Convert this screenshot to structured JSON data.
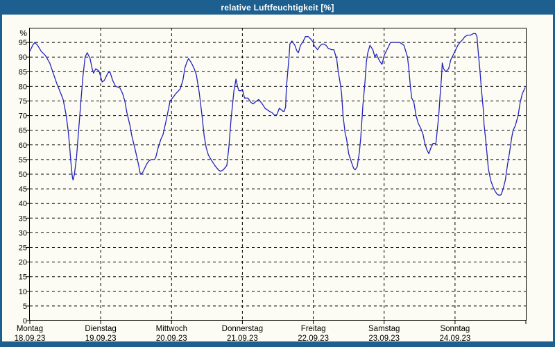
{
  "window": {
    "title": "relative Luftfeuchtigkeit [%]"
  },
  "colors": {
    "titlebar_bg": "#1d5f8f",
    "frame": "#1d5f8f",
    "title_text": "#ffffff",
    "content_bg": "#fcfcf4",
    "grid": "#000000",
    "text": "#000000",
    "line": "#2121bd"
  },
  "chart_data": {
    "type": "line",
    "title": "relative Luftfeuchtigkeit [%]",
    "ylabel": "%",
    "xlabel": "",
    "ylim": [
      0,
      100
    ],
    "yticks": [
      95,
      90,
      85,
      80,
      75,
      70,
      65,
      60,
      55,
      50,
      45,
      40,
      35,
      30,
      25,
      20,
      15,
      10,
      5,
      0
    ],
    "grid": "dashed",
    "legend_position": "none",
    "x_axis": {
      "days": [
        {
          "name": "Montag",
          "date": "18.09.23"
        },
        {
          "name": "Dienstag",
          "date": "19.09.23"
        },
        {
          "name": "Mittwoch",
          "date": "20.09.23"
        },
        {
          "name": "Donnerstag",
          "date": "21.09.23"
        },
        {
          "name": "Freitag",
          "date": "22.09.23"
        },
        {
          "name": "Samstag",
          "date": "23.09.23"
        },
        {
          "name": "Sonntag",
          "date": "24.09.23"
        }
      ]
    },
    "series": [
      {
        "name": "relative Luftfeuchtigkeit",
        "unit": "%",
        "points": [
          [
            0.0,
            92
          ],
          [
            0.04,
            94
          ],
          [
            0.07,
            95
          ],
          [
            0.11,
            94
          ],
          [
            0.16,
            92
          ],
          [
            0.22,
            90.5
          ],
          [
            0.28,
            88
          ],
          [
            0.33,
            84.5
          ],
          [
            0.38,
            81
          ],
          [
            0.43,
            78
          ],
          [
            0.47,
            75.5
          ],
          [
            0.51,
            70.5
          ],
          [
            0.54,
            65
          ],
          [
            0.56,
            60
          ],
          [
            0.58,
            54
          ],
          [
            0.6,
            49
          ],
          [
            0.61,
            48
          ],
          [
            0.63,
            50
          ],
          [
            0.66,
            56
          ],
          [
            0.69,
            65.5
          ],
          [
            0.72,
            74.5
          ],
          [
            0.75,
            83.5
          ],
          [
            0.78,
            90
          ],
          [
            0.81,
            91.5
          ],
          [
            0.85,
            89.5
          ],
          [
            0.88,
            86
          ],
          [
            0.9,
            84.5
          ],
          [
            0.93,
            86
          ],
          [
            0.96,
            85.5
          ],
          [
            0.98,
            85
          ],
          [
            1.02,
            81.5
          ],
          [
            1.05,
            82
          ],
          [
            1.1,
            84.5
          ],
          [
            1.13,
            85
          ],
          [
            1.17,
            82
          ],
          [
            1.21,
            80
          ],
          [
            1.27,
            79.5
          ],
          [
            1.31,
            77.5
          ],
          [
            1.34,
            75
          ],
          [
            1.37,
            71
          ],
          [
            1.41,
            67
          ],
          [
            1.44,
            63
          ],
          [
            1.47,
            60
          ],
          [
            1.51,
            56
          ],
          [
            1.54,
            52.5
          ],
          [
            1.56,
            50
          ],
          [
            1.59,
            50.5
          ],
          [
            1.62,
            52
          ],
          [
            1.65,
            53.5
          ],
          [
            1.68,
            54.5
          ],
          [
            1.71,
            55
          ],
          [
            1.76,
            55
          ],
          [
            1.78,
            56
          ],
          [
            1.81,
            59
          ],
          [
            1.85,
            62
          ],
          [
            1.88,
            63.5
          ],
          [
            1.93,
            69
          ],
          [
            1.98,
            75
          ],
          [
            2.03,
            76.5
          ],
          [
            2.06,
            77.5
          ],
          [
            2.12,
            79
          ],
          [
            2.16,
            82
          ],
          [
            2.19,
            86.5
          ],
          [
            2.22,
            88.5
          ],
          [
            2.24,
            89.5
          ],
          [
            2.28,
            88
          ],
          [
            2.32,
            86
          ],
          [
            2.35,
            84
          ],
          [
            2.39,
            78
          ],
          [
            2.43,
            70
          ],
          [
            2.46,
            63
          ],
          [
            2.49,
            59
          ],
          [
            2.52,
            56.5
          ],
          [
            2.57,
            54.5
          ],
          [
            2.61,
            53
          ],
          [
            2.66,
            51.5
          ],
          [
            2.69,
            51
          ],
          [
            2.73,
            51.5
          ],
          [
            2.78,
            53
          ],
          [
            2.81,
            59.5
          ],
          [
            2.84,
            69
          ],
          [
            2.86,
            73.5
          ],
          [
            2.88,
            78.5
          ],
          [
            2.91,
            82.5
          ],
          [
            2.93,
            80
          ],
          [
            2.95,
            78.5
          ],
          [
            2.98,
            78.5
          ],
          [
            3.0,
            79
          ],
          [
            3.03,
            76
          ],
          [
            3.05,
            76
          ],
          [
            3.08,
            76
          ],
          [
            3.12,
            74.5
          ],
          [
            3.15,
            74
          ],
          [
            3.2,
            75
          ],
          [
            3.23,
            75.5
          ],
          [
            3.28,
            74
          ],
          [
            3.32,
            72.5
          ],
          [
            3.35,
            72
          ],
          [
            3.38,
            71.5
          ],
          [
            3.42,
            71
          ],
          [
            3.46,
            70
          ],
          [
            3.49,
            70.5
          ],
          [
            3.52,
            72.5
          ],
          [
            3.55,
            72
          ],
          [
            3.57,
            71.5
          ],
          [
            3.59,
            71.5
          ],
          [
            3.61,
            73
          ],
          [
            3.62,
            79.5
          ],
          [
            3.64,
            85
          ],
          [
            3.66,
            90.5
          ],
          [
            3.67,
            94.5
          ],
          [
            3.7,
            95.5
          ],
          [
            3.74,
            94
          ],
          [
            3.77,
            92
          ],
          [
            3.79,
            91.5
          ],
          [
            3.82,
            94
          ],
          [
            3.86,
            95.5
          ],
          [
            3.89,
            97
          ],
          [
            3.93,
            97
          ],
          [
            3.97,
            96
          ],
          [
            4.0,
            95
          ],
          [
            4.01,
            94
          ],
          [
            4.06,
            92.5
          ],
          [
            4.1,
            94
          ],
          [
            4.14,
            94.5
          ],
          [
            4.18,
            94
          ],
          [
            4.21,
            93
          ],
          [
            4.26,
            92.5
          ],
          [
            4.29,
            92.5
          ],
          [
            4.31,
            91
          ],
          [
            4.33,
            89.5
          ],
          [
            4.35,
            85.5
          ],
          [
            4.38,
            81
          ],
          [
            4.4,
            77.5
          ],
          [
            4.42,
            70
          ],
          [
            4.45,
            64
          ],
          [
            4.47,
            62
          ],
          [
            4.5,
            57
          ],
          [
            4.54,
            54
          ],
          [
            4.57,
            52
          ],
          [
            4.59,
            51.5
          ],
          [
            4.62,
            52.5
          ],
          [
            4.65,
            57.5
          ],
          [
            4.67,
            62.5
          ],
          [
            4.7,
            73.5
          ],
          [
            4.73,
            81.5
          ],
          [
            4.75,
            88.5
          ],
          [
            4.77,
            91.5
          ],
          [
            4.8,
            94
          ],
          [
            4.84,
            92.5
          ],
          [
            4.87,
            90
          ],
          [
            4.89,
            91
          ],
          [
            4.92,
            89.5
          ],
          [
            4.94,
            88.5
          ],
          [
            4.97,
            87.5
          ],
          [
            5.0,
            90.5
          ],
          [
            5.04,
            92.5
          ],
          [
            5.09,
            95
          ],
          [
            5.13,
            95
          ],
          [
            5.18,
            95
          ],
          [
            5.22,
            95
          ],
          [
            5.25,
            94.5
          ],
          [
            5.28,
            94
          ],
          [
            5.33,
            90
          ],
          [
            5.35,
            85.5
          ],
          [
            5.37,
            80
          ],
          [
            5.39,
            76
          ],
          [
            5.42,
            74.5
          ],
          [
            5.45,
            70
          ],
          [
            5.48,
            67.5
          ],
          [
            5.52,
            65.5
          ],
          [
            5.55,
            63.5
          ],
          [
            5.57,
            61
          ],
          [
            5.6,
            58.5
          ],
          [
            5.63,
            57
          ],
          [
            5.66,
            59
          ],
          [
            5.69,
            60.5
          ],
          [
            5.73,
            60.5
          ],
          [
            5.75,
            65
          ],
          [
            5.77,
            70
          ],
          [
            5.79,
            77
          ],
          [
            5.81,
            83
          ],
          [
            5.82,
            88
          ],
          [
            5.84,
            86
          ],
          [
            5.87,
            85
          ],
          [
            5.91,
            86
          ],
          [
            5.94,
            89
          ],
          [
            5.97,
            90.5
          ],
          [
            6.0,
            92
          ],
          [
            6.04,
            94
          ],
          [
            6.07,
            95
          ],
          [
            6.11,
            96
          ],
          [
            6.14,
            97
          ],
          [
            6.18,
            97.5
          ],
          [
            6.22,
            97.5
          ],
          [
            6.26,
            98
          ],
          [
            6.29,
            98
          ],
          [
            6.31,
            97
          ],
          [
            6.33,
            91
          ],
          [
            6.35,
            86
          ],
          [
            6.37,
            80
          ],
          [
            6.38,
            77
          ],
          [
            6.4,
            72
          ],
          [
            6.41,
            67
          ],
          [
            6.43,
            62.5
          ],
          [
            6.45,
            57.5
          ],
          [
            6.47,
            52
          ],
          [
            6.49,
            49.5
          ],
          [
            6.51,
            47.5
          ],
          [
            6.54,
            45.5
          ],
          [
            6.57,
            44
          ],
          [
            6.6,
            43
          ],
          [
            6.63,
            42.8
          ],
          [
            6.65,
            43
          ],
          [
            6.68,
            45
          ],
          [
            6.71,
            48
          ],
          [
            6.74,
            53
          ],
          [
            6.77,
            57.5
          ],
          [
            6.8,
            62.5
          ],
          [
            6.82,
            65
          ],
          [
            6.85,
            66.5
          ],
          [
            6.89,
            70
          ],
          [
            6.92,
            74.5
          ],
          [
            6.95,
            77.5
          ],
          [
            6.99,
            79.5
          ]
        ]
      }
    ]
  }
}
